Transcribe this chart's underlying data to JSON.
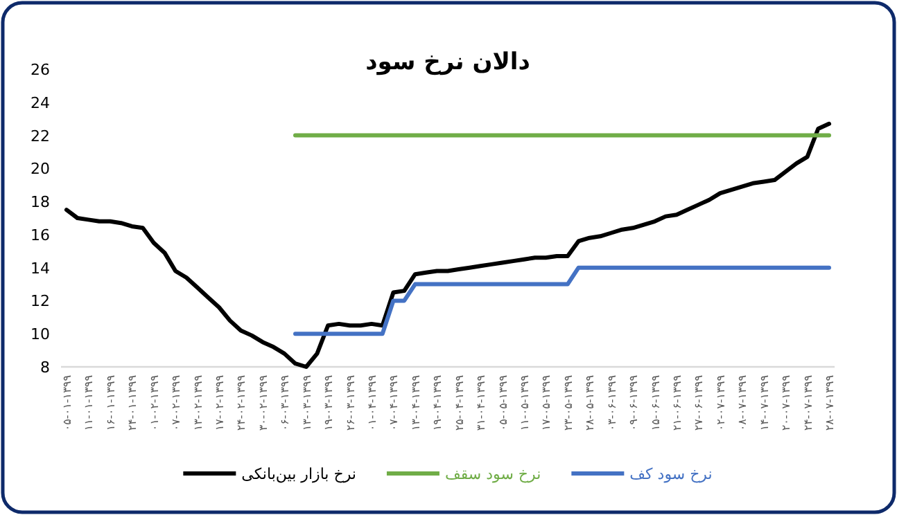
{
  "chart_data": {
    "type": "line",
    "title": "دالان نرخ سود",
    "categories": [
      "۰۵-۰۱-۱۳۹۹",
      null,
      "۱۱-۰۱-۱۳۹۹",
      null,
      "۱۶-۰۱-۱۳۹۹",
      null,
      "۲۴-۰۱-۱۳۹۹",
      null,
      "۰۱-۰۲-۱۳۹۹",
      null,
      "۰۷-۰۲-۱۳۹۹",
      null,
      "۱۳-۰۲-۱۳۹۹",
      null,
      "۱۷-۰۲-۱۳۹۹",
      null,
      "۲۴-۰۲-۱۳۹۹",
      null,
      "۳۰-۰۲-۱۳۹۹",
      null,
      "۰۶-۰۳-۱۳۹۹",
      null,
      "۱۳-۰۳-۱۳۹۹",
      null,
      "۱۹-۰۳-۱۳۹۹",
      null,
      "۲۶-۰۳-۱۳۹۹",
      null,
      "۰۱-۰۴-۱۳۹۹",
      null,
      "۰۷-۰۴-۱۳۹۹",
      null,
      "۱۳-۰۴-۱۳۹۹",
      null,
      "۱۹-۰۴-۱۳۹۹",
      null,
      "۲۵-۰۴-۱۳۹۹",
      null,
      "۳۱-۰۴-۱۳۹۹",
      null,
      "۰۵-۰۵-۱۳۹۹",
      null,
      "۱۱-۰۵-۱۳۹۹",
      null,
      "۱۷-۰۵-۱۳۹۹",
      null,
      "۲۳-۰۵-۱۳۹۹",
      null,
      "۲۸-۰۵-۱۳۹۹",
      null,
      "۰۳-۰۶-۱۳۹۹",
      null,
      "۰۹-۰۶-۱۳۹۹",
      null,
      "۱۵-۰۶-۱۳۹۹",
      null,
      "۲۱-۰۶-۱۳۹۹",
      null,
      "۲۷-۰۶-۱۳۹۹",
      null,
      "۰۲-۰۷-۱۳۹۹",
      null,
      "۰۸-۰۷-۱۳۹۹",
      null,
      "۱۴-۰۷-۱۳۹۹",
      null,
      "۲۰-۰۷-۱۳۹۹",
      null,
      "۲۴-۰۷-۱۳۹۹",
      null,
      "۲۸-۰۷-۱۳۹۹"
    ],
    "series": [
      {
        "name": "نرخ بازار بین‌بانکی",
        "color": "#000000",
        "values": [
          17.5,
          17.0,
          16.9,
          16.8,
          16.8,
          16.7,
          16.5,
          16.4,
          15.5,
          14.9,
          13.8,
          13.4,
          12.8,
          12.2,
          11.6,
          10.8,
          10.2,
          9.9,
          9.5,
          9.2,
          8.8,
          8.2,
          8.0,
          8.8,
          10.5,
          10.6,
          10.5,
          10.5,
          10.6,
          10.5,
          12.5,
          12.6,
          13.6,
          13.7,
          13.8,
          13.8,
          13.9,
          14.0,
          14.1,
          14.2,
          14.3,
          14.4,
          14.5,
          14.6,
          14.6,
          14.7,
          14.7,
          15.6,
          15.8,
          15.9,
          16.1,
          16.3,
          16.4,
          16.6,
          16.8,
          17.1,
          17.2,
          17.5,
          17.8,
          18.1,
          18.5,
          18.7,
          18.9,
          19.1,
          19.2,
          19.3,
          19.8,
          20.3,
          20.7,
          22.4,
          22.7
        ]
      },
      {
        "name": "نرخ سود سقف",
        "color": "#70ad47",
        "values": [
          null,
          null,
          null,
          null,
          null,
          null,
          null,
          null,
          null,
          null,
          null,
          null,
          null,
          null,
          null,
          null,
          null,
          null,
          null,
          null,
          null,
          22,
          22,
          22,
          22,
          22,
          22,
          22,
          22,
          22,
          22,
          22,
          22,
          22,
          22,
          22,
          22,
          22,
          22,
          22,
          22,
          22,
          22,
          22,
          22,
          22,
          22,
          22,
          22,
          22,
          22,
          22,
          22,
          22,
          22,
          22,
          22,
          22,
          22,
          22,
          22,
          22,
          22,
          22,
          22,
          22,
          22,
          22,
          22,
          22,
          22
        ]
      },
      {
        "name": "نرخ سود کف",
        "color": "#4472c4",
        "values": [
          null,
          null,
          null,
          null,
          null,
          null,
          null,
          null,
          null,
          null,
          null,
          null,
          null,
          null,
          null,
          null,
          null,
          null,
          null,
          null,
          null,
          10,
          10,
          10,
          10,
          10,
          10,
          10,
          10,
          10,
          12,
          12,
          13,
          13,
          13,
          13,
          13,
          13,
          13,
          13,
          13,
          13,
          13,
          13,
          13,
          13,
          13,
          14,
          14,
          14,
          14,
          14,
          14,
          14,
          14,
          14,
          14,
          14,
          14,
          14,
          14,
          14,
          14,
          14,
          14,
          14,
          14,
          14,
          14,
          14,
          14
        ]
      }
    ],
    "ylim": [
      8,
      26
    ],
    "yticks": [
      8,
      10,
      12,
      14,
      16,
      18,
      20,
      22,
      24,
      26
    ],
    "grid": false,
    "legend": "bottom",
    "marker": "none",
    "line_style": "solid"
  }
}
